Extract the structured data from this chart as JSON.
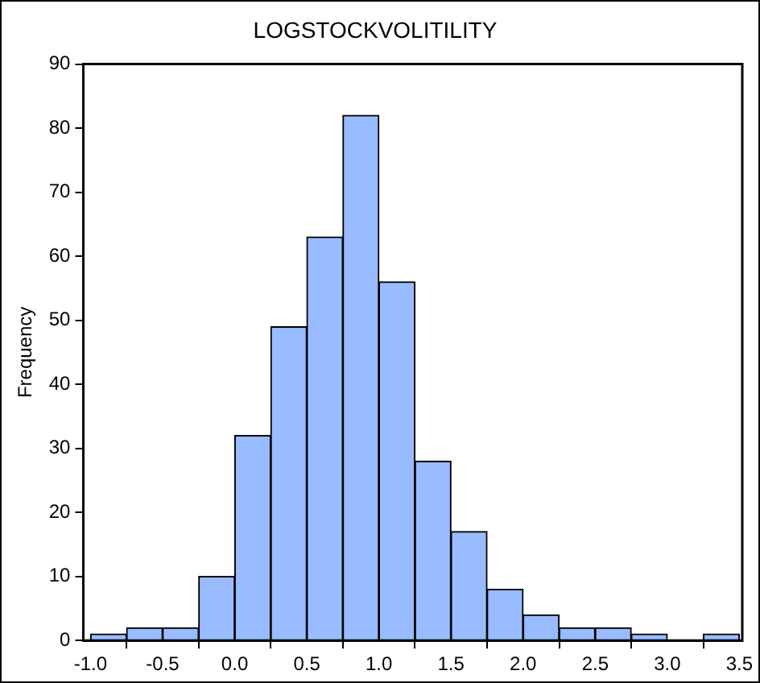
{
  "chart_data": {
    "type": "histogram",
    "title": "LOGSTOCKVOLITILITY",
    "ylabel": "Frequency",
    "bins": [
      -1.0,
      -0.75,
      -0.5,
      -0.25,
      0.0,
      0.25,
      0.5,
      0.75,
      1.0,
      1.25,
      1.5,
      1.75,
      2.0,
      2.25,
      2.5,
      2.75,
      3.0,
      3.25,
      3.5
    ],
    "values": [
      1,
      2,
      2,
      10,
      32,
      49,
      63,
      82,
      56,
      28,
      17,
      8,
      4,
      2,
      2,
      1,
      0,
      1
    ],
    "color": "#99bbff",
    "xlim": [
      -1.05,
      3.52
    ],
    "xticks": [
      {
        "value": -1.0,
        "label": "-1.0"
      },
      {
        "value": -0.5,
        "label": "-0.5"
      },
      {
        "value": 0.0,
        "label": "0.0"
      },
      {
        "value": 0.5,
        "label": "0.5"
      },
      {
        "value": 1.0,
        "label": "1.0"
      },
      {
        "value": 1.5,
        "label": "1.5"
      },
      {
        "value": 2.0,
        "label": "2.0"
      },
      {
        "value": 2.5,
        "label": "2.5"
      },
      {
        "value": 3.0,
        "label": "3.0"
      },
      {
        "value": 3.5,
        "label": "3.5"
      }
    ],
    "ylim": [
      0,
      90
    ],
    "yticks": [
      0,
      10,
      20,
      30,
      40,
      50,
      60,
      70,
      80,
      90
    ],
    "grid": false,
    "legend": false
  }
}
